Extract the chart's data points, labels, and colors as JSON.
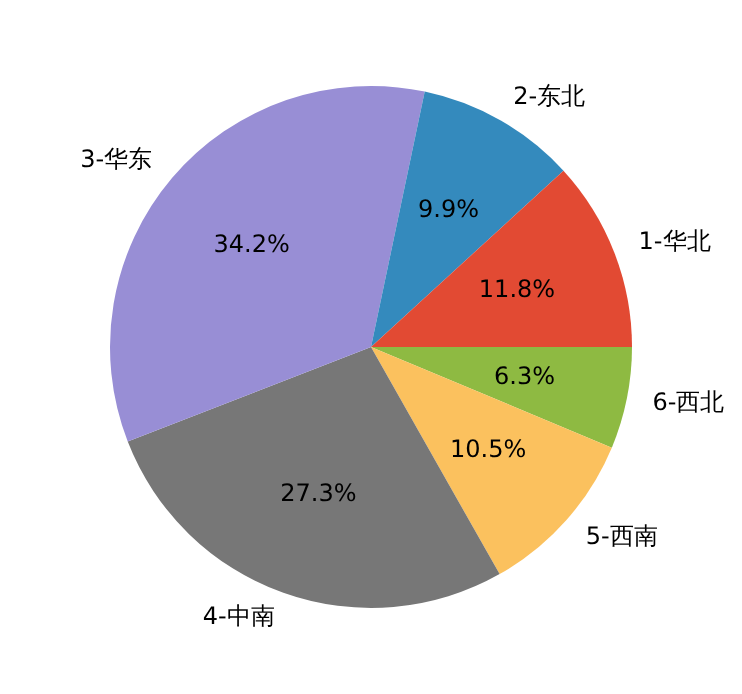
{
  "chart_data": {
    "type": "pie",
    "categories": [
      "1-华北",
      "2-东北",
      "3-华东",
      "4-中南",
      "5-西南",
      "6-西北"
    ],
    "values": [
      11.8,
      9.9,
      34.2,
      27.3,
      10.5,
      6.3
    ],
    "colors": [
      "#e24a33",
      "#348abd",
      "#988ed5",
      "#777777",
      "#fbc15e",
      "#8eba42"
    ],
    "value_labels": [
      "11.8%",
      "9.9%",
      "34.2%",
      "27.3%",
      "10.5%",
      "6.3%"
    ],
    "legend": false
  }
}
